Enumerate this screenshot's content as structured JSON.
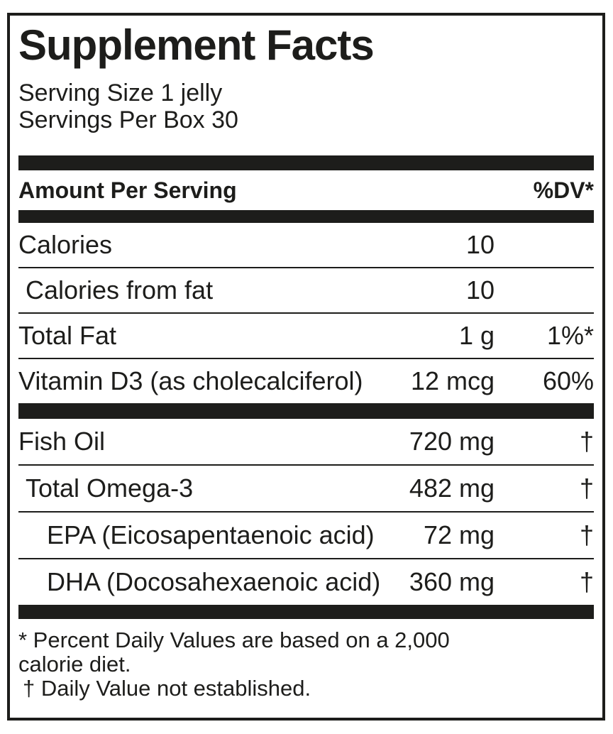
{
  "title": "Supplement Facts",
  "serving": {
    "size_line": "Serving Size 1 jelly",
    "per_box_line": "Servings Per Box 30"
  },
  "table": {
    "header": {
      "amount_label": "Amount Per Serving",
      "dv_label": "%DV*"
    },
    "sections": [
      {
        "rows": [
          {
            "name": "Calories",
            "amount": "10",
            "dv": ""
          },
          {
            "name": "Calories from fat",
            "amount": "10",
            "dv": ""
          },
          {
            "name": "Total Fat",
            "amount": "1 g",
            "dv": "1%*"
          },
          {
            "name": "Vitamin D3 (as cholecalciferol)",
            "amount": "12 mcg",
            "dv": "60%"
          }
        ]
      },
      {
        "rows": [
          {
            "name": "Fish Oil",
            "amount": "720 mg",
            "dv": "†"
          },
          {
            "name": "Total Omega-3",
            "amount": "482 mg",
            "dv": "†"
          },
          {
            "name": "EPA (Eicosapentaenoic acid)",
            "amount": "72 mg",
            "dv": "†"
          },
          {
            "name": "DHA (Docosahexaenoic acid)",
            "amount": "360 mg",
            "dv": "†"
          }
        ]
      }
    ]
  },
  "footnotes": {
    "percent_line1": "* Percent Daily Values are based on a 2,000",
    "percent_line2": "calorie diet.",
    "dagger_line": "† Daily Value not established."
  },
  "colors": {
    "ink": "#1d1d1b",
    "background": "#ffffff"
  }
}
